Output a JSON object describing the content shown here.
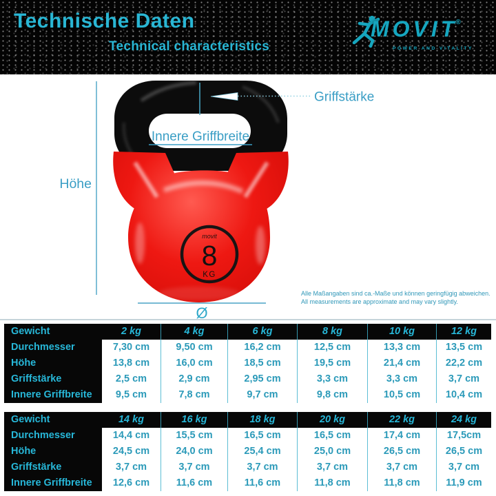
{
  "header": {
    "title_de": "Technische Daten",
    "title_en": "Technical characteristics",
    "logo": {
      "brand": "MOVIT",
      "registered": "®",
      "tagline": "POWER AND VITALITY"
    }
  },
  "diagram": {
    "labels": {
      "height": "Höhe",
      "grip_thickness": "Griffstärke",
      "inner_grip_width": "Innere Griffbreite",
      "diameter": "Ø"
    },
    "kettlebell_badge": {
      "brand_script": "movit",
      "weight_value": "8",
      "weight_unit": "KG"
    },
    "disclaimer_de": "Alle Maßangaben sind ca.-Maße und können geringfügig abweichen.",
    "disclaimer_en": "All measurements are approximate and may vary slightly."
  },
  "tables": [
    {
      "header": {
        "label": "Gewicht",
        "weights": [
          "2 kg",
          "4 kg",
          "6 kg",
          "8 kg",
          "10 kg",
          "12 kg"
        ]
      },
      "rows": [
        {
          "label": "Durchmesser",
          "values": [
            "7,30 cm",
            "9,50 cm",
            "16,2 cm",
            "12,5 cm",
            "13,3 cm",
            "13,5 cm"
          ]
        },
        {
          "label": "Höhe",
          "values": [
            "13,8 cm",
            "16,0 cm",
            "18,5 cm",
            "19,5 cm",
            "21,4 cm",
            "22,2 cm"
          ]
        },
        {
          "label": "Griffstärke",
          "values": [
            "2,5 cm",
            "2,9 cm",
            "2,95 cm",
            "3,3 cm",
            "3,3 cm",
            "3,7 cm"
          ]
        },
        {
          "label": "Innere Griffbreite",
          "values": [
            "9,5 cm",
            "7,8 cm",
            "9,7 cm",
            "9,8 cm",
            "10,5 cm",
            "10,4 cm"
          ]
        }
      ]
    },
    {
      "header": {
        "label": "Gewicht",
        "weights": [
          "14 kg",
          "16 kg",
          "18 kg",
          "20 kg",
          "22 kg",
          "24 kg"
        ]
      },
      "rows": [
        {
          "label": "Durchmesser",
          "values": [
            "14,4 cm",
            "15,5 cm",
            "16,5 cm",
            "16,5 cm",
            "17,4 cm",
            "17,5cm"
          ]
        },
        {
          "label": "Höhe",
          "values": [
            "24,5 cm",
            "24,0 cm",
            "25,4 cm",
            "25,0 cm",
            "26,5 cm",
            "26,5 cm"
          ]
        },
        {
          "label": "Griffstärke",
          "values": [
            "3,7 cm",
            "3,7 cm",
            "3,7 cm",
            "3,7 cm",
            "3,7 cm",
            "3,7 cm"
          ]
        },
        {
          "label": "Innere Griffbreite",
          "values": [
            "12,6 cm",
            "11,6 cm",
            "11,6 cm",
            "11,8 cm",
            "11,8 cm",
            "11,9 cm"
          ]
        }
      ]
    }
  ],
  "colors": {
    "accent_teal": "#29b6d4",
    "logo_teal": "#16a6bf",
    "table_label_cyan": "#27b7d8",
    "table_value_teal": "#2b9ab9",
    "annotation_blue": "#3a9ec5",
    "kettlebell_red": "#ee1610",
    "handle_black": "#0c0c0c",
    "header_bg": "#040404"
  }
}
